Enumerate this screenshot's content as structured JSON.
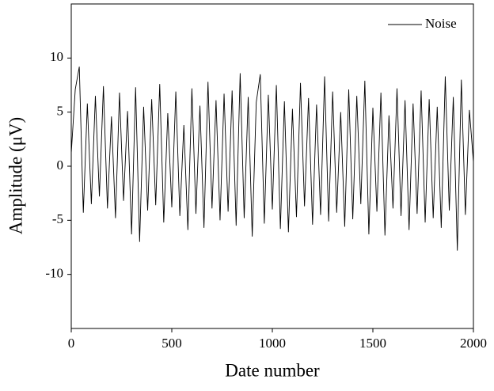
{
  "chart_data": {
    "type": "line",
    "x_label": "Date number",
    "y_label": "Amplitude (μV)",
    "x": [
      0,
      20,
      40,
      60,
      80,
      100,
      120,
      140,
      160,
      180,
      200,
      220,
      240,
      260,
      280,
      300,
      320,
      340,
      360,
      380,
      400,
      420,
      440,
      460,
      480,
      500,
      520,
      540,
      560,
      580,
      600,
      620,
      640,
      660,
      680,
      700,
      720,
      740,
      760,
      780,
      800,
      820,
      840,
      860,
      880,
      900,
      920,
      940,
      960,
      980,
      1000,
      1020,
      1040,
      1060,
      1080,
      1100,
      1120,
      1140,
      1160,
      1180,
      1200,
      1220,
      1240,
      1260,
      1280,
      1300,
      1320,
      1340,
      1360,
      1380,
      1400,
      1420,
      1440,
      1460,
      1480,
      1500,
      1520,
      1540,
      1560,
      1580,
      1600,
      1620,
      1640,
      1660,
      1680,
      1700,
      1720,
      1740,
      1760,
      1780,
      1800,
      1820,
      1840,
      1860,
      1880,
      1900,
      1920,
      1940,
      1960,
      1980,
      2000
    ],
    "series": [
      {
        "name": "Noise",
        "color": "#000000",
        "values": [
          1.2,
          7.1,
          9.2,
          -4.3,
          5.8,
          -3.5,
          6.5,
          -2.8,
          7.4,
          -3.9,
          4.6,
          -4.8,
          6.8,
          -3.2,
          5.1,
          -6.3,
          7.3,
          -7.0,
          5.5,
          -4.1,
          6.2,
          -3.6,
          7.6,
          -5.2,
          4.9,
          -3.8,
          6.9,
          -4.6,
          3.8,
          -5.9,
          7.2,
          -4.4,
          5.6,
          -5.7,
          7.8,
          -3.9,
          6.1,
          -5.0,
          6.7,
          -4.2,
          7.0,
          -5.5,
          8.6,
          -4.8,
          6.4,
          -6.5,
          5.9,
          8.5,
          -5.3,
          6.6,
          -4.0,
          7.5,
          -5.8,
          6.0,
          -6.1,
          5.3,
          -4.7,
          7.7,
          -3.7,
          6.3,
          -5.4,
          5.7,
          -4.5,
          8.3,
          -5.1,
          6.9,
          -4.3,
          5.0,
          -5.6,
          7.1,
          -4.9,
          6.5,
          -3.5,
          7.9,
          -6.3,
          5.4,
          -4.2,
          6.8,
          -6.4,
          4.7,
          -3.9,
          7.2,
          -4.6,
          6.1,
          -5.9,
          5.8,
          -4.4,
          7.0,
          -5.2,
          6.2,
          -4.8,
          5.5,
          -5.7,
          8.3,
          -4.1,
          6.4,
          -7.8,
          8.0,
          -4.5,
          5.2,
          0.4
        ]
      }
    ],
    "xlim": [
      0,
      2000
    ],
    "xticks": [
      0,
      500,
      1000,
      1500,
      2000
    ],
    "ylim": [
      -15,
      15
    ],
    "yticks": [
      -10,
      -5,
      0,
      5,
      10
    ],
    "legend": "upper right"
  }
}
